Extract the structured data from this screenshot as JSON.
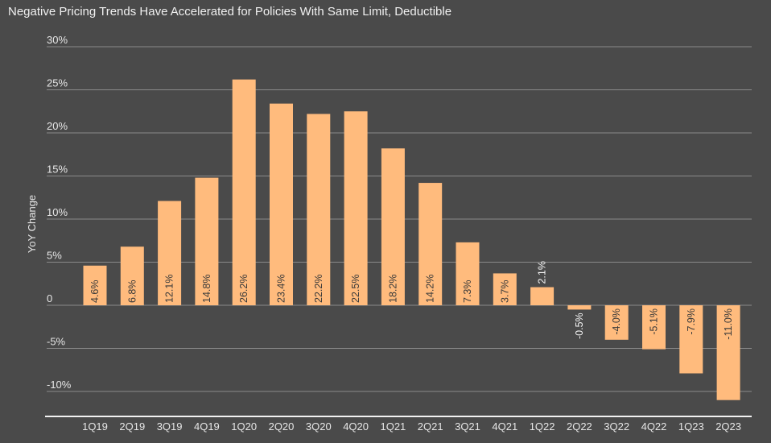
{
  "chart_data": {
    "type": "bar",
    "title": "Negative Pricing Trends Have Accelerated for Policies With Same Limit, Deductible",
    "ylabel": "YoY Change",
    "xlabel": "",
    "categories": [
      "1Q19",
      "2Q19",
      "3Q19",
      "4Q19",
      "1Q20",
      "2Q20",
      "3Q20",
      "4Q20",
      "1Q21",
      "2Q21",
      "3Q21",
      "4Q21",
      "1Q22",
      "2Q22",
      "3Q22",
      "4Q22",
      "1Q23",
      "2Q23"
    ],
    "values": [
      4.6,
      6.8,
      12.1,
      14.8,
      26.2,
      23.4,
      22.2,
      22.5,
      18.2,
      14.2,
      7.3,
      3.7,
      2.1,
      -0.5,
      -4.0,
      -5.1,
      -7.9,
      -11.0
    ],
    "data_labels": [
      "4.6%",
      "6.8%",
      "12.1%",
      "14.8%",
      "26.2%",
      "23.4%",
      "22.2%",
      "22.5%",
      "18.2%",
      "14.2%",
      "7.3%",
      "3.7%",
      "2.1%",
      "-0.5%",
      "-4.0%",
      "-5.1%",
      "-7.9%",
      "-11.0%"
    ],
    "yticks": [
      30,
      25,
      20,
      15,
      10,
      5,
      0,
      -5,
      -10
    ],
    "ytick_labels": [
      "30%",
      "25%",
      "20%",
      "15%",
      "10%",
      "5%",
      "0",
      "-5%",
      "-10%"
    ],
    "ylim": [
      -12.5,
      30
    ],
    "grid": true,
    "colors": {
      "bar": "#ffbb7d",
      "background": "#4a4a4a",
      "grid": "#8a8a8a",
      "label_inside": "#3a3a3a",
      "label_outside": "#f5f5f5"
    }
  }
}
